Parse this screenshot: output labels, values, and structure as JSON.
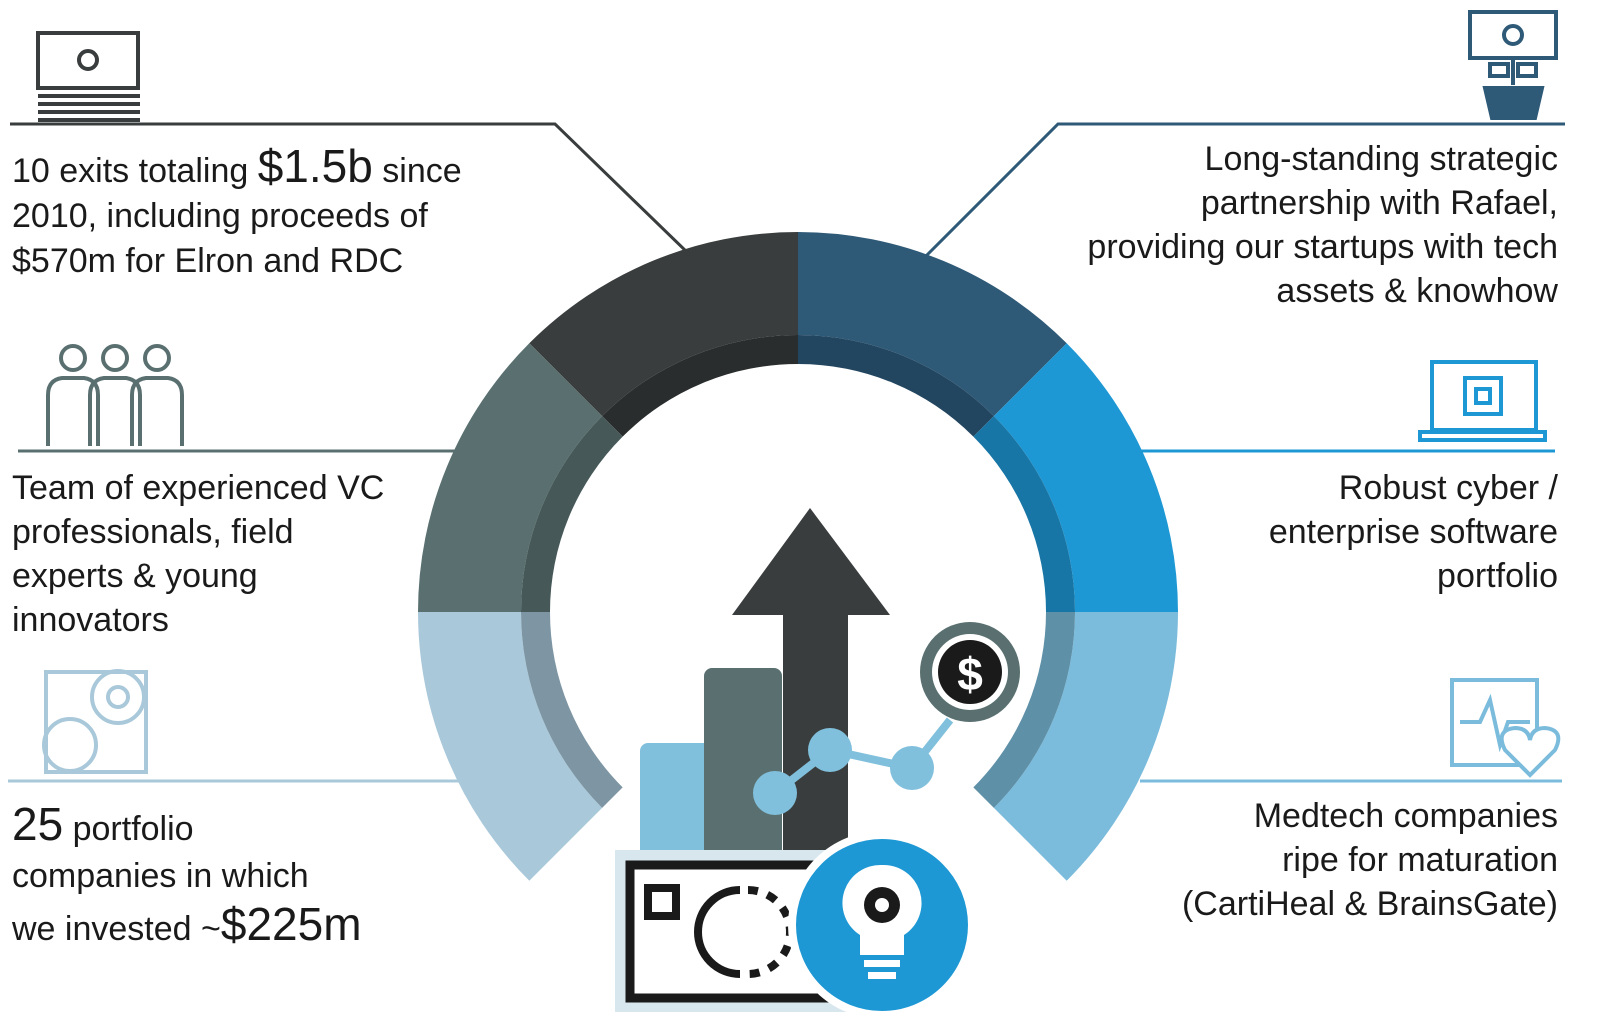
{
  "items": [
    {
      "lines": [
        [
          "10 exits totaling ",
          "$1.5b",
          " since"
        ],
        [
          "2010, including proceeds of"
        ],
        [
          "$570m for Elron and RDC"
        ]
      ]
    },
    {
      "lines": [
        [
          "Long-standing strategic"
        ],
        [
          "partnership with Rafael,"
        ],
        [
          "providing our startups with tech"
        ],
        [
          "assets & knowhow"
        ]
      ]
    },
    {
      "lines": [
        [
          "Team of experienced VC"
        ],
        [
          "professionals, field"
        ],
        [
          "experts & young"
        ],
        [
          "innovators"
        ]
      ]
    },
    {
      "lines": [
        [
          "Robust cyber /"
        ],
        [
          "enterprise software"
        ],
        [
          "portfolio"
        ]
      ]
    },
    {
      "lines": [
        [
          "25",
          " portfolio"
        ],
        [
          "companies in which"
        ],
        [
          "we invested ~",
          "$225m"
        ]
      ]
    },
    {
      "lines": [
        [
          "Medtech companies"
        ],
        [
          "ripe for maturation"
        ],
        [
          "(CartiHeal & BrainsGate)"
        ]
      ]
    }
  ],
  "center": {
    "coin": "$"
  }
}
